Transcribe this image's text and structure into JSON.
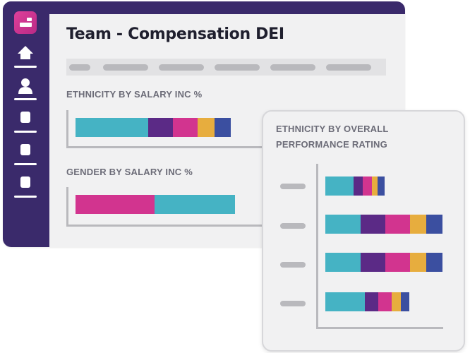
{
  "page": {
    "title": "Team - Compensation DEI"
  },
  "colors": {
    "sidebar": "#3a2a6b",
    "logo": "#d6338f",
    "teal": "#45b3c4",
    "purple": "#5b2a86",
    "magenta": "#d2348f",
    "gold": "#e7ad3e",
    "blue": "#3b4fa0",
    "placeholder": "#b9b9bd"
  },
  "sidebar": {
    "items": [
      {
        "name": "home",
        "icon": "home-icon"
      },
      {
        "name": "people",
        "icon": "user-icon"
      },
      {
        "name": "nav-3",
        "icon": "square-icon"
      },
      {
        "name": "nav-4",
        "icon": "square-icon"
      },
      {
        "name": "nav-5",
        "icon": "square-icon"
      }
    ]
  },
  "filters": {
    "count": 6
  },
  "sections": {
    "ethnicity_salary": {
      "title": "ETHNICITY BY SALARY INC %"
    },
    "gender_salary": {
      "title": "GENDER BY SALARY INC %"
    },
    "ethnicity_performance": {
      "title": "ETHNICITY BY OVERALL PERFORMANCE RATING"
    }
  },
  "chart_data": [
    {
      "type": "bar",
      "stacked": true,
      "orientation": "horizontal",
      "title": "ETHNICITY BY SALARY INC %",
      "categories": [
        ""
      ],
      "series": [
        {
          "color": "#45b3c4",
          "values": [
            103
          ]
        },
        {
          "color": "#5b2a86",
          "values": [
            35
          ]
        },
        {
          "color": "#d2348f",
          "values": [
            35
          ]
        },
        {
          "color": "#e7ad3e",
          "values": [
            24
          ]
        },
        {
          "color": "#3b4fa0",
          "values": [
            23
          ]
        }
      ],
      "grid": false
    },
    {
      "type": "bar",
      "stacked": true,
      "orientation": "horizontal",
      "title": "GENDER BY SALARY INC %",
      "categories": [
        ""
      ],
      "series": [
        {
          "color": "#d2348f",
          "values": [
            112
          ]
        },
        {
          "color": "#45b3c4",
          "values": [
            114
          ]
        }
      ],
      "grid": false
    },
    {
      "type": "bar",
      "stacked": true,
      "orientation": "horizontal",
      "title": "ETHNICITY BY OVERALL PERFORMANCE RATING",
      "categories": [
        "",
        "",
        "",
        ""
      ],
      "series": [
        {
          "color": "#45b3c4",
          "values": [
            40,
            50,
            50,
            56
          ]
        },
        {
          "color": "#5b2a86",
          "values": [
            13,
            35,
            35,
            19
          ]
        },
        {
          "color": "#d2348f",
          "values": [
            13,
            35,
            35,
            19
          ]
        },
        {
          "color": "#e7ad3e",
          "values": [
            8,
            23,
            23,
            13
          ]
        },
        {
          "color": "#3b4fa0",
          "values": [
            10,
            23,
            23,
            12
          ]
        }
      ],
      "grid": false
    }
  ]
}
